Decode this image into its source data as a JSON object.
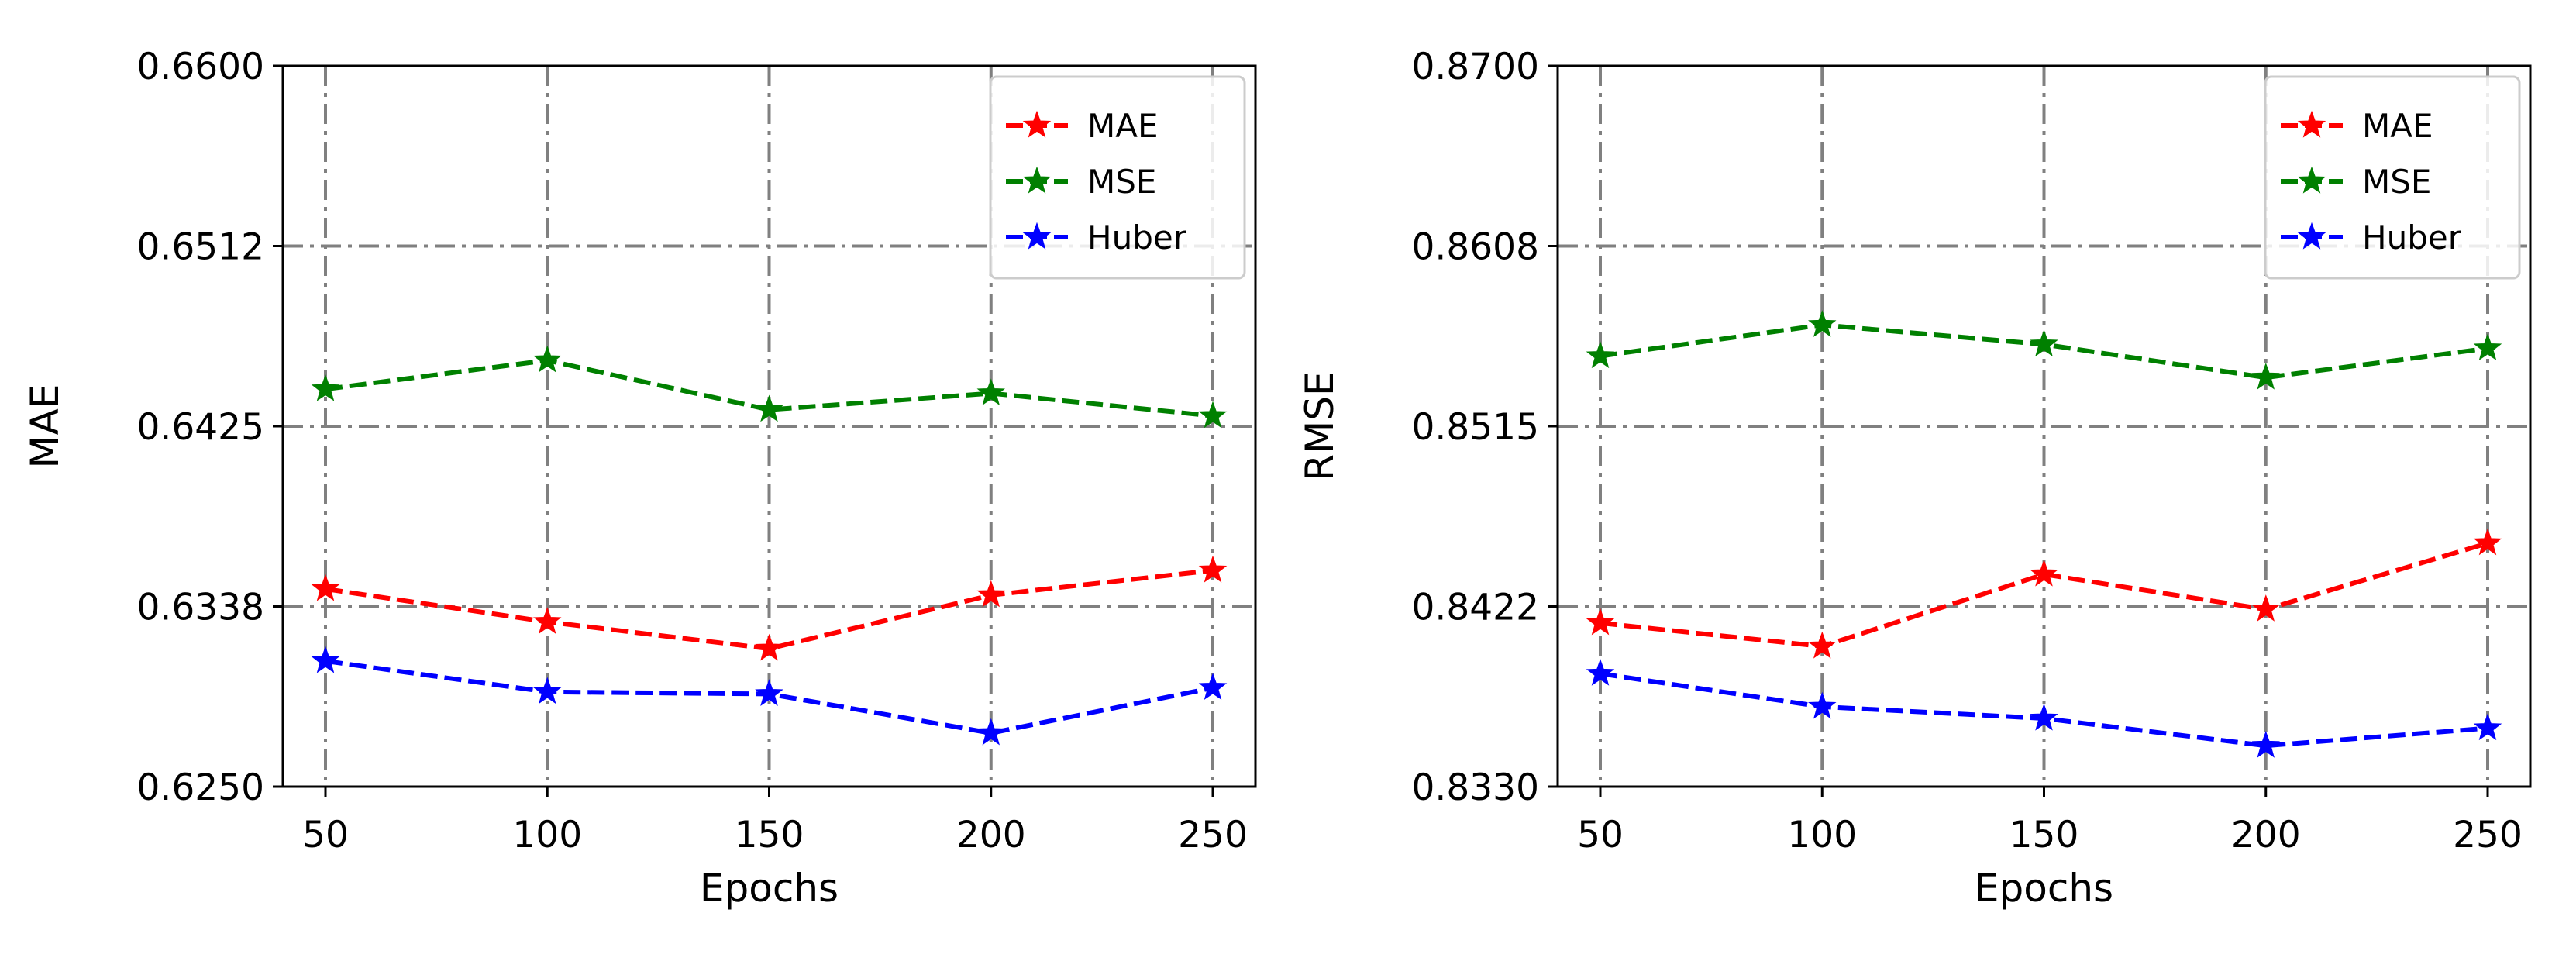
{
  "chart_data": [
    {
      "type": "line",
      "title": "",
      "xlabel": "Epochs",
      "ylabel": "MAE",
      "x": [
        50,
        100,
        150,
        200,
        250
      ],
      "xticks": [
        "50",
        "100",
        "150",
        "200",
        "250"
      ],
      "yticks": [
        "0.6250",
        "0.6338",
        "0.6425",
        "0.6512",
        "0.6600"
      ],
      "ylim": [
        0.625,
        0.66
      ],
      "grid": true,
      "legend_position": "top-right",
      "series": [
        {
          "name": "MAE",
          "color": "#ff0000",
          "values": [
            0.6346,
            0.633,
            0.6317,
            0.6343,
            0.6355
          ]
        },
        {
          "name": "MSE",
          "color": "#008000",
          "values": [
            0.6443,
            0.6457,
            0.6433,
            0.6441,
            0.643
          ]
        },
        {
          "name": "Huber",
          "color": "#0000ff",
          "values": [
            0.6311,
            0.6296,
            0.6295,
            0.6276,
            0.6298
          ]
        }
      ]
    },
    {
      "type": "line",
      "title": "",
      "xlabel": "Epochs",
      "ylabel": "RMSE",
      "x": [
        50,
        100,
        150,
        200,
        250
      ],
      "xticks": [
        "50",
        "100",
        "150",
        "200",
        "250"
      ],
      "yticks": [
        "0.8330",
        "0.8422",
        "0.8515",
        "0.8608",
        "0.8700"
      ],
      "ylim": [
        0.833,
        0.87
      ],
      "grid": true,
      "legend_position": "top-right",
      "series": [
        {
          "name": "MAE",
          "color": "#ff0000",
          "values": [
            0.8414,
            0.8402,
            0.8439,
            0.8421,
            0.8455
          ]
        },
        {
          "name": "MSE",
          "color": "#008000",
          "values": [
            0.8551,
            0.8567,
            0.8557,
            0.854,
            0.8555
          ]
        },
        {
          "name": "Huber",
          "color": "#0000ff",
          "values": [
            0.8388,
            0.8371,
            0.8365,
            0.8351,
            0.836
          ]
        }
      ]
    }
  ]
}
